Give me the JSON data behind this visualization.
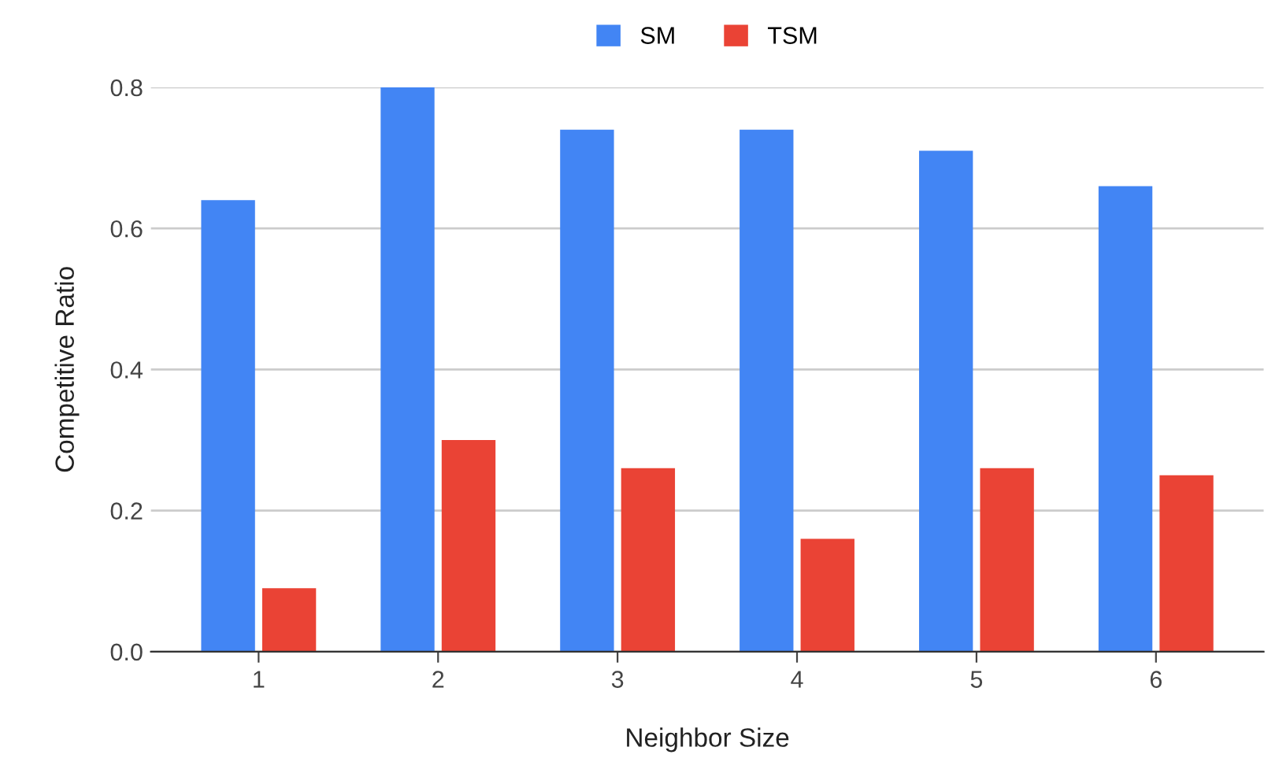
{
  "chart_data": {
    "type": "bar",
    "xlabel": "Neighbor Size",
    "ylabel": "Competitive Ratio",
    "categories": [
      "1",
      "2",
      "3",
      "4",
      "5",
      "6"
    ],
    "series": [
      {
        "name": "SM",
        "color": "#4285f4",
        "values": [
          0.64,
          0.8,
          0.74,
          0.74,
          0.71,
          0.66
        ]
      },
      {
        "name": "TSM",
        "color": "#ea4335",
        "values": [
          0.09,
          0.3,
          0.26,
          0.16,
          0.26,
          0.25
        ]
      }
    ],
    "ylim": [
      0,
      0.8
    ],
    "yticks": [
      {
        "value": 0,
        "label": "0.0"
      },
      {
        "value": 0.2,
        "label": "0.2"
      },
      {
        "value": 0.4,
        "label": "0.4"
      },
      {
        "value": 0.6,
        "label": "0.6"
      },
      {
        "value": 0.8,
        "label": "0.8"
      }
    ],
    "grid": "y",
    "legend": "top"
  }
}
